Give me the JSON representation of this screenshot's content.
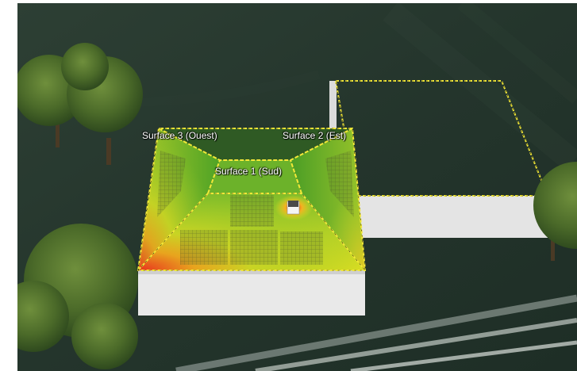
{
  "scene": {
    "type": "3d-solar-roof-irradiance-view",
    "colors": {
      "ground": "#24352c",
      "wall": "#e6e6e6",
      "outline": "#f2e838",
      "irradiance_high": "#e8321e",
      "irradiance_mid": "#e3de21",
      "irradiance_low": "#3e9a26",
      "tree": "#4d6b2a"
    },
    "surfaces": [
      {
        "label": "Surface 3 (Ouest)"
      },
      {
        "label": "Surface 2 (Est)"
      },
      {
        "label": "Surface 1 (Sud)"
      }
    ],
    "objects": [
      {
        "icon": "chimney-icon"
      },
      {
        "icon": "tree-icon"
      }
    ]
  }
}
